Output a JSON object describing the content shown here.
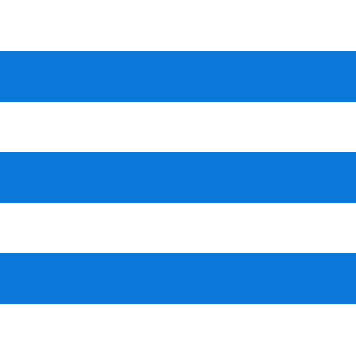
{
  "menu_icon": {
    "icon": "hamburger-menu-icon",
    "bar_count": 3,
    "bar_color": "#0b78da",
    "background_color": "#ffffff"
  }
}
